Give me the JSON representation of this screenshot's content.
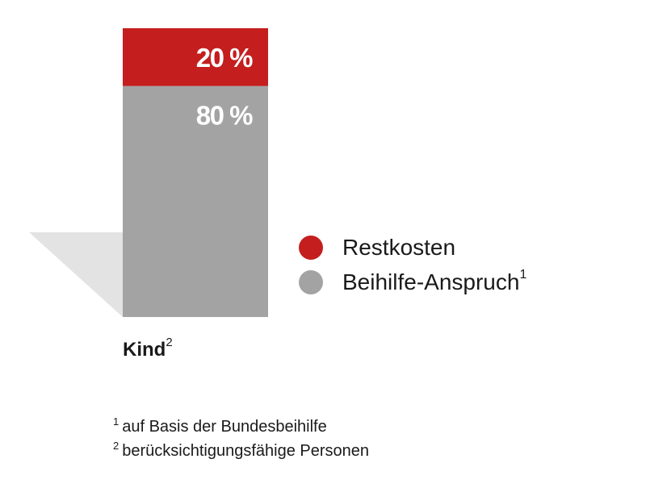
{
  "chart_data": {
    "type": "bar",
    "stacked": true,
    "categories": [
      "Kind"
    ],
    "category_note": "2",
    "ylim": [
      0,
      100
    ],
    "series": [
      {
        "name": "Beihilfe-Anspruch",
        "name_note": "1",
        "values": [
          80
        ],
        "label": "80 %",
        "color": "#a3a3a3"
      },
      {
        "name": "Restkosten",
        "values": [
          20
        ],
        "label": "20 %",
        "color": "#c41e1e"
      }
    ],
    "legend_position": "right",
    "grid": false
  },
  "decor": {
    "shadow_color": "#e3e3e3"
  },
  "footnotes": [
    {
      "num": "1",
      "text": "auf Basis der Bundesbeihilfe"
    },
    {
      "num": "2",
      "text": "berücksichtigungsfähige Personen"
    }
  ]
}
